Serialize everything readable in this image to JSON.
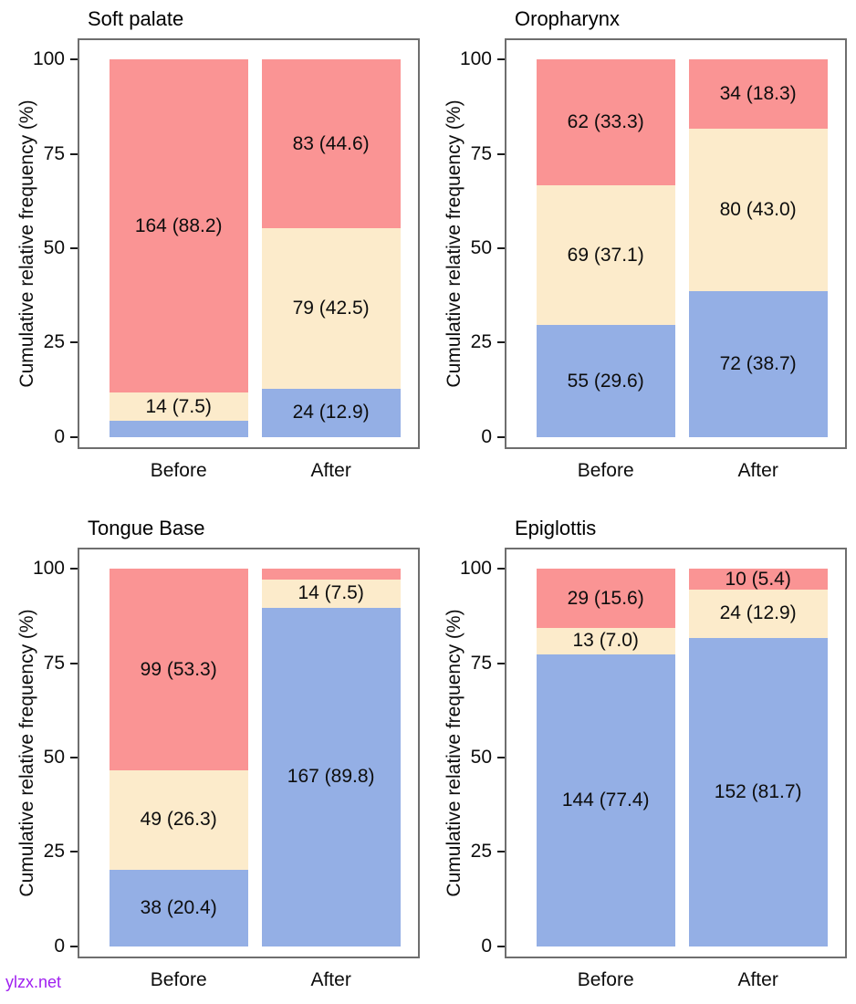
{
  "figure": {
    "ylabel": "Cumulative relative frequency (%)",
    "x_categories": [
      "Before",
      "After"
    ],
    "yticks": [
      0,
      25,
      50,
      75,
      100
    ],
    "palette": {
      "blue": "#94AFE5",
      "cream": "#FCEBCB",
      "red": "#FA9494"
    }
  },
  "watermark": {
    "text": "ylzx.net",
    "color": "#A020F0"
  },
  "chart_data": [
    {
      "type": "bar",
      "stacked": true,
      "title": "Soft palate",
      "categories": [
        "Before",
        "After"
      ],
      "ylabel": "Cumulative relative frequency (%)",
      "ylim": [
        0,
        100
      ],
      "yticks": [
        0,
        25,
        50,
        75,
        100
      ],
      "grid": false,
      "legend": "none",
      "series_order_bottom_to_top": [
        "blue",
        "cream",
        "red"
      ],
      "series": [
        {
          "name": "blue",
          "color_key": "blue",
          "values_pct": [
            4.3,
            12.9
          ],
          "labels": [
            null,
            "24 (12.9)"
          ]
        },
        {
          "name": "cream",
          "color_key": "cream",
          "values_pct": [
            7.5,
            42.5
          ],
          "labels": [
            "14 (7.5)",
            "79 (42.5)"
          ]
        },
        {
          "name": "red",
          "color_key": "red",
          "values_pct": [
            88.2,
            44.6
          ],
          "labels": [
            "164 (88.2)",
            "83 (44.6)"
          ]
        }
      ]
    },
    {
      "type": "bar",
      "stacked": true,
      "title": "Oropharynx",
      "categories": [
        "Before",
        "After"
      ],
      "ylabel": "Cumulative relative frequency (%)",
      "ylim": [
        0,
        100
      ],
      "yticks": [
        0,
        25,
        50,
        75,
        100
      ],
      "grid": false,
      "legend": "none",
      "series_order_bottom_to_top": [
        "blue",
        "cream",
        "red"
      ],
      "series": [
        {
          "name": "blue",
          "color_key": "blue",
          "values_pct": [
            29.6,
            38.7
          ],
          "labels": [
            "55 (29.6)",
            "72 (38.7)"
          ]
        },
        {
          "name": "cream",
          "color_key": "cream",
          "values_pct": [
            37.1,
            43.0
          ],
          "labels": [
            "69 (37.1)",
            "80 (43.0)"
          ]
        },
        {
          "name": "red",
          "color_key": "red",
          "values_pct": [
            33.3,
            18.3
          ],
          "labels": [
            "62 (33.3)",
            "34 (18.3)"
          ]
        }
      ]
    },
    {
      "type": "bar",
      "stacked": true,
      "title": "Tongue Base",
      "categories": [
        "Before",
        "After"
      ],
      "ylabel": "Cumulative relative frequency (%)",
      "ylim": [
        0,
        100
      ],
      "yticks": [
        0,
        25,
        50,
        75,
        100
      ],
      "grid": false,
      "legend": "none",
      "series_order_bottom_to_top": [
        "blue",
        "cream",
        "red"
      ],
      "series": [
        {
          "name": "blue",
          "color_key": "blue",
          "values_pct": [
            20.4,
            89.8
          ],
          "labels": [
            "38 (20.4)",
            "167 (89.8)"
          ]
        },
        {
          "name": "cream",
          "color_key": "cream",
          "values_pct": [
            26.3,
            7.5
          ],
          "labels": [
            "49 (26.3)",
            "14 (7.5)"
          ]
        },
        {
          "name": "red",
          "color_key": "red",
          "values_pct": [
            53.3,
            2.7
          ],
          "labels": [
            "99 (53.3)",
            null
          ]
        }
      ]
    },
    {
      "type": "bar",
      "stacked": true,
      "title": "Epiglottis",
      "categories": [
        "Before",
        "After"
      ],
      "ylabel": "Cumulative relative frequency (%)",
      "ylim": [
        0,
        100
      ],
      "yticks": [
        0,
        25,
        50,
        75,
        100
      ],
      "grid": false,
      "legend": "none",
      "series_order_bottom_to_top": [
        "blue",
        "cream",
        "red"
      ],
      "series": [
        {
          "name": "blue",
          "color_key": "blue",
          "values_pct": [
            77.4,
            81.7
          ],
          "labels": [
            "144 (77.4)",
            "152 (81.7)"
          ]
        },
        {
          "name": "cream",
          "color_key": "cream",
          "values_pct": [
            7.0,
            12.9
          ],
          "labels": [
            "13 (7.0)",
            "24 (12.9)"
          ]
        },
        {
          "name": "red",
          "color_key": "red",
          "values_pct": [
            15.6,
            5.4
          ],
          "labels": [
            "29 (15.6)",
            "10 (5.4)"
          ]
        }
      ]
    }
  ]
}
